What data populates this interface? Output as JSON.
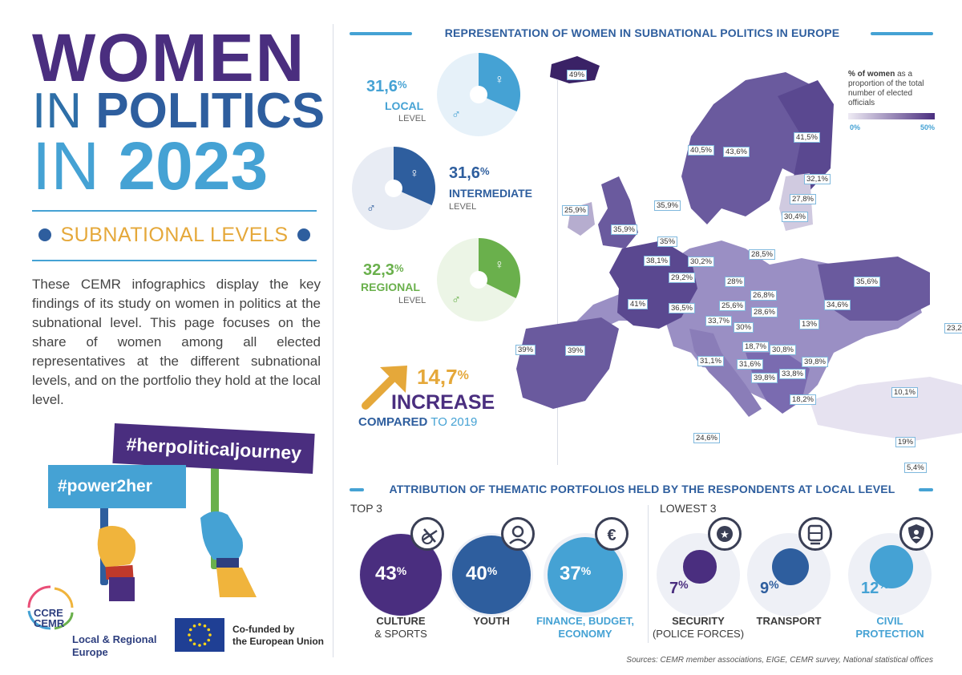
{
  "title": {
    "line1": "WOMEN",
    "line2_thin": "IN",
    "line2_bold": "POLITICS",
    "line3_thin": "IN",
    "line3_bold": "2023"
  },
  "subtitle": "SUBNATIONAL LEVELS",
  "intro": "These CEMR infographics display the key findings of its study on women in politics at the subnational level. This page focuses on the share of women among all elected representatives at the different subnational levels, and on the portfolio they hold at the local level.",
  "hashtags": {
    "purple": "#herpoliticaljourney",
    "blue": "#power2her"
  },
  "logos": {
    "ccre_line1": "CCRE",
    "ccre_line2": "CEMR",
    "ccre_name": "Local & Regional Europe",
    "eu_line1": "Co-funded by",
    "eu_line2": "the European Union"
  },
  "representation": {
    "title": "REPRESENTATION OF WOMEN IN SUBNATIONAL POLITICS IN EUROPE",
    "levels": [
      {
        "pct": "31,6",
        "unit": "%",
        "name": "LOCAL",
        "suffix": "LEVEL",
        "value": 31.6,
        "color": "#45a2d4"
      },
      {
        "pct": "31,6",
        "unit": "%",
        "name": "INTERMEDIATE",
        "suffix": "LEVEL",
        "value": 31.6,
        "color": "#2e5e9e"
      },
      {
        "pct": "32,3",
        "unit": "%",
        "name": "REGIONAL",
        "suffix": "LEVEL",
        "value": 32.3,
        "color": "#6ab04c"
      }
    ],
    "increase": {
      "pct": "14,7",
      "unit": "%",
      "word": "INCREASE",
      "compared": "COMPARED",
      "to": "TO 2019"
    },
    "legend": {
      "title_bold": "% of women",
      "title_rest": "as a proportion of the total number of elected officials",
      "min": "0%",
      "max": "50%"
    },
    "map_labels": [
      "49%",
      "40,5%",
      "43,6%",
      "41,5%",
      "32,1%",
      "27,8%",
      "30,4%",
      "25,9%",
      "35,9%",
      "35,9%",
      "35%",
      "38,1%",
      "30,2%",
      "28,5%",
      "29,2%",
      "28%",
      "35,6%",
      "26,8%",
      "41%",
      "36,5%",
      "25,6%",
      "28,6%",
      "34,6%",
      "33,7%",
      "30%",
      "13%",
      "23,2%",
      "39%",
      "39%",
      "18,7%",
      "30,8%",
      "31,1%",
      "31,6%",
      "39,8%",
      "39,8%",
      "33,8%",
      "18,2%",
      "10,1%",
      "24,6%",
      "19%",
      "5,4%"
    ]
  },
  "portfolios": {
    "title": "ATTRIBUTION OF THEMATIC PORTFOLIOS HELD BY THE RESPONDENTS AT LOCAL LEVEL",
    "top_title": "TOP 3",
    "lowest_title": "LOWEST 3",
    "top": [
      {
        "value": "43",
        "unit": "%",
        "line1": "CULTURE",
        "line2": "& SPORTS",
        "icon": "culture-sports-icon",
        "color": "#4a2e7f"
      },
      {
        "value": "40",
        "unit": "%",
        "line1": "YOUTH",
        "line2": "",
        "icon": "youth-icon",
        "color": "#2e5e9e"
      },
      {
        "value": "37",
        "unit": "%",
        "line1": "FINANCE, BUDGET,",
        "line2": "ECONOMY",
        "icon": "euro-icon",
        "color": "#45a2d4"
      }
    ],
    "lowest": [
      {
        "value": "7",
        "unit": "%",
        "line1": "SECURITY",
        "line2": "(POLICE FORCES)",
        "icon": "police-badge-icon",
        "color": "#4a2e7f"
      },
      {
        "value": "9",
        "unit": "%",
        "line1": "TRANSPORT",
        "line2": "",
        "icon": "train-icon",
        "color": "#2e5e9e"
      },
      {
        "value": "12",
        "unit": "%",
        "line1": "CIVIL",
        "line2": "PROTECTION",
        "icon": "shield-person-icon",
        "color": "#45a2d4"
      }
    ]
  },
  "sources": "Sources: CEMR member associations, EIGE, CEMR survey, National statistical offices"
}
